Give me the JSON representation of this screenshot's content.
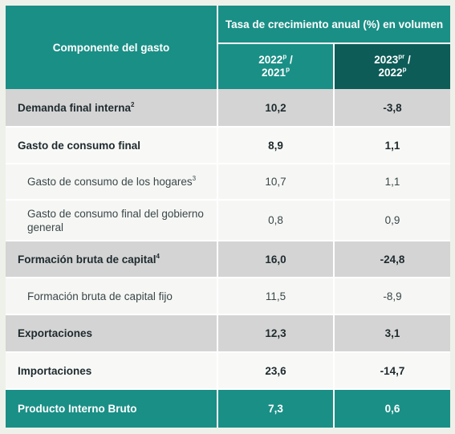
{
  "header": {
    "component_label": "Componente del gasto",
    "growth_label": "Tasa de crecimiento anual (%) en volumen",
    "col1": {
      "line1": "2022",
      "sup1": "p",
      "slash": " /",
      "line2": "2021",
      "sup2": "p"
    },
    "col2": {
      "line1": "2023",
      "sup1": "pr",
      "slash": " /",
      "line2": "2022",
      "sup2": "p"
    }
  },
  "rows": [
    {
      "label": "Demanda final interna",
      "note": "2",
      "v1": "10,2",
      "v2": "-3,8"
    },
    {
      "label": "Gasto de consumo final",
      "note": "",
      "v1": "8,9",
      "v2": "1,1"
    },
    {
      "label": "Gasto de consumo de los hogares",
      "note": "3",
      "v1": "10,7",
      "v2": "1,1"
    },
    {
      "label": "Gasto de consumo final del gobierno general",
      "note": "",
      "v1": "0,8",
      "v2": "0,9"
    },
    {
      "label": "Formación bruta de capital",
      "note": "4",
      "v1": "16,0",
      "v2": "-24,8"
    },
    {
      "label": "Formación bruta de capital fijo",
      "note": "",
      "v1": "11,5",
      "v2": "-8,9"
    },
    {
      "label": "Exportaciones",
      "note": "",
      "v1": "12,3",
      "v2": "3,1"
    },
    {
      "label": "Importaciones",
      "note": "",
      "v1": "23,6",
      "v2": "-14,7"
    },
    {
      "label": "Producto Interno Bruto",
      "note": "",
      "v1": "7,3",
      "v2": "0,6"
    }
  ]
}
